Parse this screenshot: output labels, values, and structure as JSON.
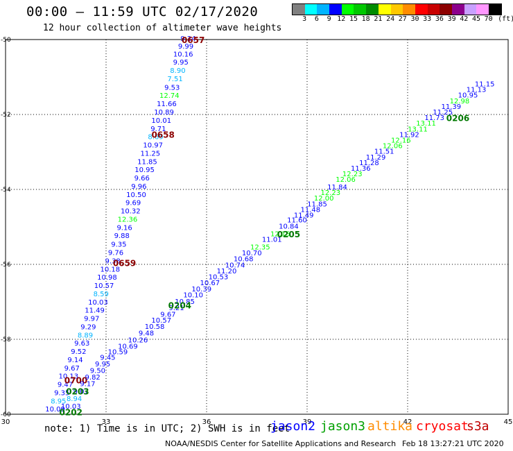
{
  "header": {
    "title": "00:00 – 11:59 UTC 02/17/2020",
    "subtitle": "12 hour collection of altimeter wave heights"
  },
  "colorbar": {
    "colors": [
      "#808080",
      "#00ffff",
      "#00b4ff",
      "#0000ff",
      "#00ff00",
      "#00c800",
      "#008c00",
      "#ffff00",
      "#ffc800",
      "#ff8c00",
      "#ff0000",
      "#c80000",
      "#8c0000",
      "#8c008c",
      "#c8a0ff",
      "#ff96ff",
      "#000000"
    ],
    "labels": [
      "3",
      "6",
      "9",
      "12",
      "15",
      "18",
      "21",
      "24",
      "27",
      "30",
      "33",
      "36",
      "39",
      "42",
      "45",
      "70",
      "(ft)"
    ]
  },
  "axes": {
    "x_ticks": [
      "30",
      "33",
      "36",
      "39",
      "42",
      "45"
    ],
    "y_ticks": [
      "-50",
      "-52",
      "-54",
      "-56",
      "-58",
      "-60"
    ]
  },
  "chart_data": {
    "type": "map",
    "tracks": [
      {
        "satellite": "jason2",
        "points": [
          [
            35.45,
            -50.04,
            "9.24"
          ],
          [
            35.38,
            -50.24,
            "9.99"
          ],
          [
            35.3,
            -50.45,
            "10.16"
          ],
          [
            35.23,
            -50.67,
            "9.95"
          ],
          [
            35.14,
            -50.89,
            "8.90"
          ],
          [
            35.06,
            -51.11,
            "7.51"
          ],
          [
            34.97,
            -51.34,
            "9.53"
          ],
          [
            34.89,
            -51.56,
            "12.74"
          ],
          [
            34.81,
            -51.78,
            "11.66"
          ],
          [
            34.73,
            -52.0,
            "10.89"
          ],
          [
            34.65,
            -52.22,
            "10.01"
          ],
          [
            34.56,
            -52.44,
            "9.71"
          ],
          [
            34.48,
            -52.66,
            "8.69"
          ],
          [
            34.4,
            -52.88,
            "10.97"
          ],
          [
            34.32,
            -53.1,
            "11.25"
          ],
          [
            34.23,
            -53.32,
            "11.85"
          ],
          [
            34.15,
            -53.54,
            "10.95"
          ],
          [
            34.07,
            -53.76,
            "9.66"
          ],
          [
            33.98,
            -53.98,
            "9.96"
          ],
          [
            33.9,
            -54.2,
            "10.50"
          ],
          [
            33.81,
            -54.42,
            "9.69"
          ],
          [
            33.73,
            -54.64,
            "10.32"
          ],
          [
            33.64,
            -54.86,
            "12.36"
          ],
          [
            33.55,
            -55.08,
            "9.16"
          ],
          [
            33.47,
            -55.3,
            "9.88"
          ],
          [
            33.38,
            -55.53,
            "9.35"
          ],
          [
            33.29,
            -55.75,
            "9.76"
          ],
          [
            33.2,
            -55.97,
            "9.38"
          ],
          [
            33.12,
            -56.19,
            "10.18"
          ],
          [
            33.03,
            -56.41,
            "10.98"
          ],
          [
            32.94,
            -56.63,
            "10.57"
          ],
          [
            32.85,
            -56.85,
            "8.59"
          ],
          [
            32.76,
            -57.07,
            "10.03"
          ],
          [
            32.66,
            -57.29,
            "11.49"
          ],
          [
            32.57,
            -57.51,
            "9.97"
          ],
          [
            32.47,
            -57.73,
            "9.29"
          ],
          [
            32.38,
            -57.95,
            "8.89"
          ],
          [
            32.28,
            -58.17,
            "9.63"
          ],
          [
            32.18,
            -58.39,
            "9.52"
          ],
          [
            32.08,
            -58.61,
            "9.14"
          ],
          [
            31.98,
            -58.83,
            "9.67"
          ],
          [
            31.88,
            -59.05,
            "10.13"
          ],
          [
            31.78,
            -59.27,
            "9.47"
          ],
          [
            31.68,
            -59.49,
            "9.35"
          ],
          [
            31.58,
            -59.71,
            "8.95"
          ],
          [
            31.48,
            -59.93,
            "10.09"
          ]
        ],
        "time_labels": [
          [
            "35.6",
            "-50.02",
            "0657"
          ],
          [
            "34.7",
            "-52.55",
            "0658"
          ],
          [
            "33.55",
            "-55.97",
            "0659"
          ],
          [
            "32.1",
            "-59.1",
            "0700"
          ]
        ]
      },
      {
        "satellite": "jason2",
        "points": [
          [
            31.95,
            -59.85,
            "10.03"
          ],
          [
            32.05,
            -59.65,
            "8.94"
          ],
          [
            32.25,
            -59.45,
            "9.07"
          ],
          [
            32.45,
            -59.25,
            "9.17"
          ],
          [
            32.6,
            -59.07,
            "9.82"
          ],
          [
            32.75,
            -58.9,
            "9.50"
          ],
          [
            32.9,
            -58.72,
            "9.95"
          ],
          [
            33.05,
            -58.55,
            "9.45"
          ],
          [
            33.35,
            -58.4,
            "10.59"
          ],
          [
            33.65,
            -58.25,
            "10.69"
          ],
          [
            33.95,
            -58.08,
            "10.26"
          ],
          [
            34.2,
            -57.9,
            "9.48"
          ],
          [
            34.45,
            -57.72,
            "10.58"
          ],
          [
            34.65,
            -57.56,
            "10.57"
          ],
          [
            34.85,
            -57.4,
            "9.67"
          ],
          [
            35.1,
            -57.22,
            "9.21"
          ],
          [
            35.35,
            -57.06,
            "10.85"
          ],
          [
            35.6,
            -56.88,
            "10.10"
          ],
          [
            35.85,
            -56.72,
            "10.39"
          ],
          [
            36.1,
            -56.56,
            "10.67"
          ],
          [
            36.35,
            -56.4,
            "10.53"
          ],
          [
            36.6,
            -56.24,
            "11.20"
          ],
          [
            36.85,
            -56.08,
            "10.74"
          ],
          [
            37.1,
            -55.92,
            "10.68"
          ],
          [
            37.35,
            -55.76,
            "10.70"
          ],
          [
            37.6,
            -55.6,
            "12.35"
          ],
          [
            37.95,
            -55.4,
            "11.01"
          ],
          [
            38.2,
            -55.25,
            "12.15"
          ],
          [
            38.45,
            -55.05,
            "10.84"
          ],
          [
            38.7,
            -54.88,
            "11.60"
          ],
          [
            38.9,
            -54.75,
            "11.49"
          ],
          [
            39.1,
            -54.6,
            "11.48"
          ],
          [
            39.3,
            -54.45,
            "11.85"
          ],
          [
            39.5,
            -54.3,
            "12.00"
          ],
          [
            39.7,
            -54.15,
            "12.23"
          ],
          [
            39.9,
            -54.0,
            "11.84"
          ],
          [
            40.15,
            -53.8,
            "12.06"
          ],
          [
            40.35,
            -53.65,
            "12.23"
          ],
          [
            40.6,
            -53.5,
            "11.36"
          ],
          [
            40.85,
            -53.35,
            "11.28"
          ],
          [
            41.05,
            -53.2,
            "11.29"
          ],
          [
            41.3,
            -53.05,
            "11.51"
          ],
          [
            41.55,
            -52.9,
            "12.06"
          ],
          [
            41.8,
            -52.75,
            "12.16"
          ],
          [
            42.05,
            -52.6,
            "11.92"
          ],
          [
            42.3,
            -52.45,
            "13.11"
          ],
          [
            42.55,
            -52.3,
            "13.11"
          ],
          [
            42.8,
            -52.15,
            "11.73"
          ],
          [
            43.05,
            -52.0,
            "11.25"
          ],
          [
            43.3,
            -51.85,
            "11.39"
          ],
          [
            43.55,
            -51.7,
            "12.98"
          ],
          [
            43.8,
            -51.55,
            "10.95"
          ],
          [
            44.05,
            -51.4,
            "11.13"
          ],
          [
            44.3,
            -51.25,
            "11.15"
          ]
        ],
        "time_labels": [
          [
            "31.95",
            "-59.95",
            "0202"
          ],
          [
            "32.15",
            "-59.4",
            "0203"
          ],
          [
            "35.2",
            "-57.1",
            "0204"
          ],
          [
            "38.45",
            "-55.2",
            "0205"
          ],
          [
            "43.5",
            "-52.1",
            "0206"
          ]
        ]
      }
    ]
  },
  "legend": {
    "note": "note: 1) Time is in UTC; 2) SWH is in feet",
    "satellites": [
      {
        "name": "jason2",
        "color": "#0000ff"
      },
      {
        "name": "jason3",
        "color": "#00a000"
      },
      {
        "name": "altika",
        "color": "#ff8c00"
      },
      {
        "name": "cryosat",
        "color": "#ff0000"
      },
      {
        "name": "s3a",
        "color": "#c00000"
      }
    ]
  },
  "footer": {
    "credit": "NOAA/NESDIS Center for Satellite Applications and Research",
    "timestamp": "Feb 18 13:27:21 UTC 2020"
  }
}
